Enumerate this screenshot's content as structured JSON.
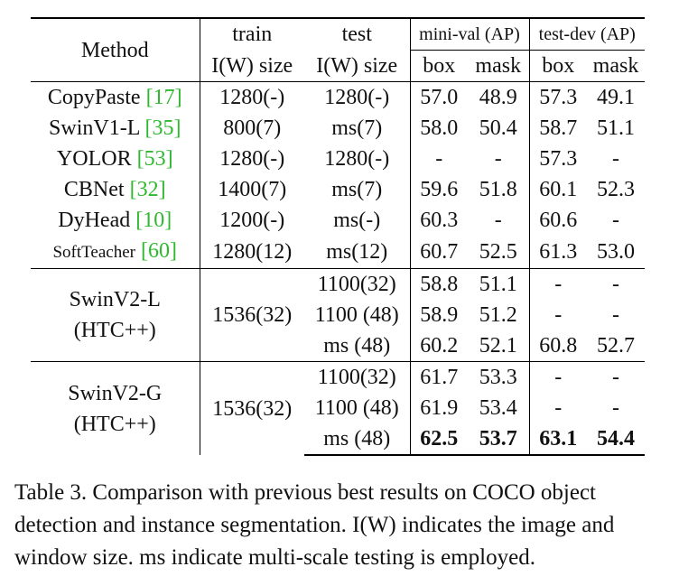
{
  "table": {
    "header": {
      "method": "Method",
      "train_top": "train",
      "train_bottom": "I(W) size",
      "test_top": "test",
      "test_bottom": "I(W) size",
      "minival": "mini-val (AP)",
      "testdev": "test-dev (AP)",
      "box1": "box",
      "mask1": "mask",
      "box2": "box",
      "mask2": "mask"
    },
    "rows": [
      {
        "name": "CopyPaste",
        "ref": "17",
        "open": "[",
        "close": "]",
        "train": "1280(-)",
        "test": "1280(-)",
        "mv_box": "57.0",
        "mv_mask": "48.9",
        "td_box": "57.3",
        "td_mask": "49.1"
      },
      {
        "name": "SwinV1-L",
        "ref": "35",
        "open": "[",
        "close": "]",
        "train": "800(7)",
        "test": "ms(7)",
        "mv_box": "58.0",
        "mv_mask": "50.4",
        "td_box": "58.7",
        "td_mask": "51.1"
      },
      {
        "name": "YOLOR",
        "ref": "53",
        "open": "[",
        "close": "]",
        "train": "1280(-)",
        "test": "1280(-)",
        "mv_box": "-",
        "mv_mask": "-",
        "td_box": "57.3",
        "td_mask": "-"
      },
      {
        "name": "CBNet",
        "ref": "32",
        "open": "[",
        "close": "]",
        "train": "1400(7)",
        "test": "ms(7)",
        "mv_box": "59.6",
        "mv_mask": "51.8",
        "td_box": "60.1",
        "td_mask": "52.3"
      },
      {
        "name": "DyHead",
        "ref": "10",
        "open": "[",
        "close": "]",
        "train": "1200(-)",
        "test": "ms(-)",
        "mv_box": "60.3",
        "mv_mask": "-",
        "td_box": "60.6",
        "td_mask": "-"
      },
      {
        "name": "SoftTeacher",
        "ref": "60",
        "open": "[",
        "close": "]",
        "train": "1280(12)",
        "test": "ms(12)",
        "mv_box": "60.7",
        "mv_mask": "52.5",
        "td_box": "61.3",
        "td_mask": "53.0"
      }
    ],
    "groups": [
      {
        "name1": "SwinV2-L",
        "name2": "(HTC++)",
        "train": "1536(32)",
        "rows": [
          {
            "test": "1100(32)",
            "mv_box": "58.8",
            "mv_mask": "51.1",
            "td_box": "-",
            "td_mask": "-"
          },
          {
            "test": "1100 (48)",
            "mv_box": "58.9",
            "mv_mask": "51.2",
            "td_box": "-",
            "td_mask": "-"
          },
          {
            "test": "ms (48)",
            "mv_box": "60.2",
            "mv_mask": "52.1",
            "td_box": "60.8",
            "td_mask": "52.7"
          }
        ]
      },
      {
        "name1": "SwinV2-G",
        "name2": "(HTC++)",
        "train": "1536(32)",
        "rows": [
          {
            "test": "1100(32)",
            "mv_box": "61.7",
            "mv_mask": "53.3",
            "td_box": "-",
            "td_mask": "-"
          },
          {
            "test": "1100 (48)",
            "mv_box": "61.9",
            "mv_mask": "53.4",
            "td_box": "-",
            "td_mask": "-"
          },
          {
            "test": "ms (48)",
            "mv_box": "62.5",
            "mv_mask": "53.7",
            "td_box": "63.1",
            "td_mask": "54.4"
          }
        ]
      }
    ]
  },
  "caption": "Table 3. Comparison with previous best results on COCO object detection and instance segmentation. I(W) indicates the image and window size. ms indicate multi-scale testing is employed."
}
